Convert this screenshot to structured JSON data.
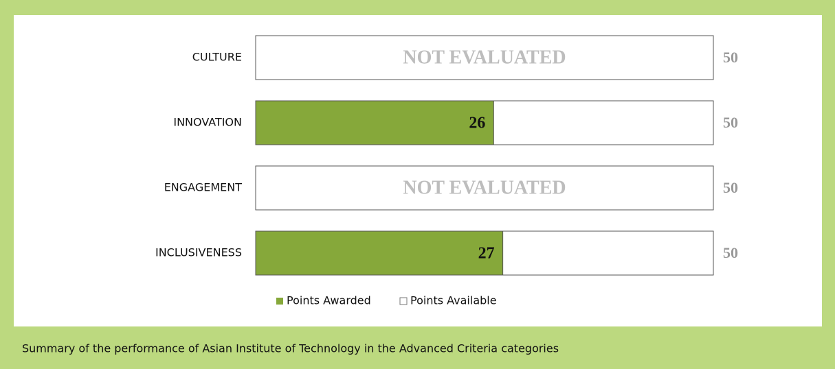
{
  "chart_data": {
    "type": "bar",
    "categories": [
      "CULTURE",
      "INNOVATION",
      "ENGAGEMENT",
      "INCLUSIVENESS"
    ],
    "series": [
      {
        "name": "Points Awarded",
        "color": "#86a83a",
        "values": [
          null,
          26,
          null,
          27
        ],
        "value_labels": [
          "NOT EVALUATED",
          "26",
          "NOT EVALUATED",
          "27"
        ]
      },
      {
        "name": "Points Available",
        "color": "#ffffff",
        "values": [
          50,
          50,
          50,
          50
        ]
      }
    ],
    "legend": "bottom",
    "caption": "Summary of the performance of Asian Institute of Technology in the Advanced Criteria categories"
  }
}
